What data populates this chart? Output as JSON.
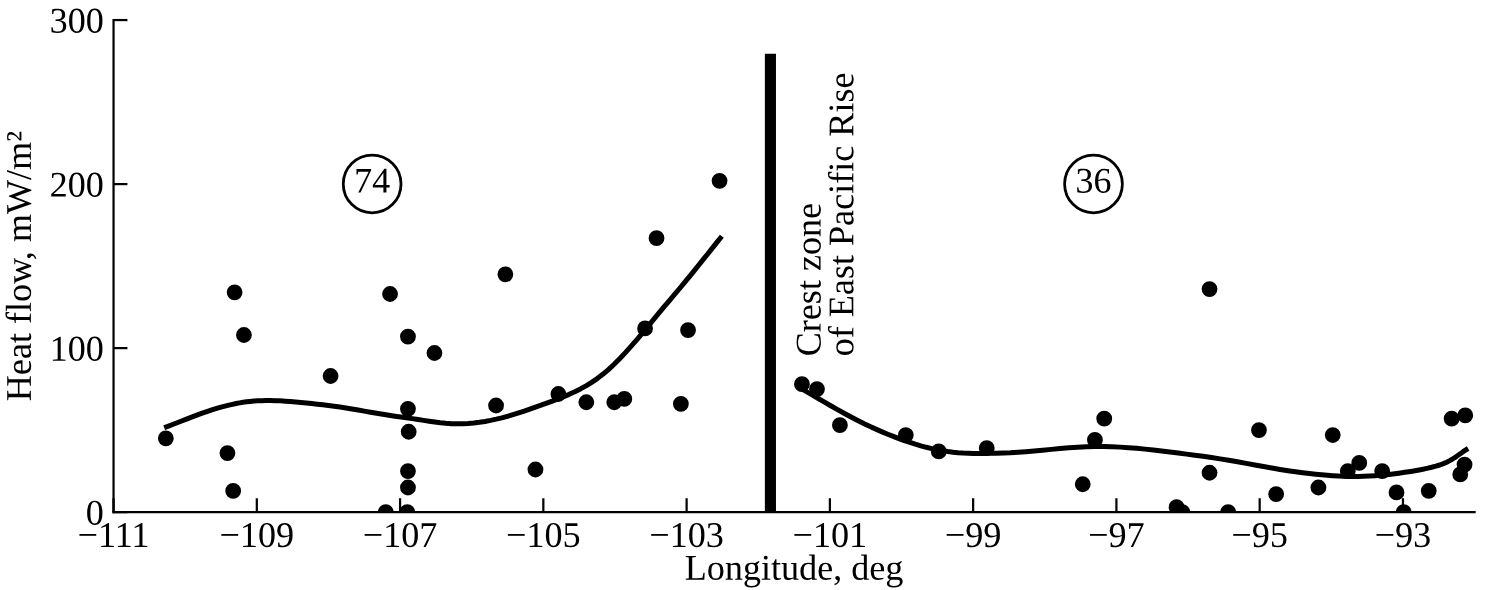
{
  "chart_data": {
    "type": "scatter",
    "xlabel": "Longitude, deg",
    "ylabel": "Heat flow, mW/m²",
    "xlim": [
      -111,
      -92
    ],
    "ylim": [
      0,
      300
    ],
    "xticks": [
      {
        "value": -111,
        "label": "−111"
      },
      {
        "value": -109,
        "label": "−109"
      },
      {
        "value": -107,
        "label": "−107"
      },
      {
        "value": -105,
        "label": "−105"
      },
      {
        "value": -103,
        "label": "−103"
      },
      {
        "value": -101,
        "label": "−101"
      },
      {
        "value": -99,
        "label": "−99"
      },
      {
        "value": -97,
        "label": "−97"
      },
      {
        "value": -95,
        "label": "−95"
      },
      {
        "value": -93,
        "label": "−93"
      }
    ],
    "yticks": [
      0,
      100,
      200,
      300
    ],
    "grid": false,
    "legend": false,
    "marker": "circle",
    "series": [
      {
        "color": "#000000",
        "x": [
          -110.27,
          -109.41,
          -109.33,
          -109.31,
          -109.18,
          -107.97,
          -107.2,
          -107.14,
          -106.9,
          -106.89,
          -106.89,
          -106.88,
          -106.89,
          -106.89,
          -106.52,
          -105.66,
          -105.53,
          -105.11,
          -104.79,
          -104.4,
          -104.01,
          -103.87,
          -103.58,
          -103.42,
          -103.08,
          -102.98,
          -102.54
        ],
        "values": [
          45,
          36,
          13,
          134,
          108,
          83,
          0,
          133,
          0,
          15,
          25,
          49,
          63,
          107,
          97,
          65,
          145,
          26,
          72,
          67,
          67,
          69,
          112,
          167,
          66,
          111,
          202
        ]
      },
      {
        "color": "#000000",
        "x": [
          -101.39,
          -101.18,
          -100.86,
          -99.94,
          -99.48,
          -98.81,
          -97.47,
          -97.3,
          -97.17,
          -96.16,
          -96.08,
          -95.7,
          -95.7,
          -95.44,
          -95.01,
          -94.77,
          -94.18,
          -93.98,
          -93.77,
          -93.61,
          -93.29,
          -93.09,
          -92.99,
          -92.64,
          -92.32,
          -92.13,
          -92.2,
          -92.14
        ],
        "values": [
          78,
          75,
          53,
          47,
          37,
          39,
          17,
          44,
          57,
          3,
          0,
          136,
          24,
          0,
          50,
          11,
          15,
          47,
          25,
          30,
          25,
          12,
          0,
          13,
          57,
          59,
          23,
          29
        ]
      },
      {
        "type": "line",
        "color": "#000000",
        "line_style": "solid",
        "marker": "none",
        "x": [
          -110.26,
          -109.5,
          -108.87,
          -108,
          -106.99,
          -106.05,
          -105.11,
          -104.17,
          -103.24,
          -102.53
        ],
        "values": [
          52,
          64,
          68,
          65,
          58,
          54,
          64,
          84,
          129,
          167
        ]
      },
      {
        "type": "line",
        "color": "#000000",
        "line_style": "solid",
        "marker": "none",
        "x": [
          -101.43,
          -100.43,
          -99.5,
          -98.58,
          -97.18,
          -95.79,
          -94.4,
          -93.47,
          -92.54,
          -92.12
        ],
        "values": [
          76,
          52,
          38,
          36,
          40,
          34,
          24,
          22,
          28,
          38
        ]
      }
    ],
    "ref_lines": [
      {
        "axis": "x",
        "value": -101.83,
        "label": "Crest zone\nof East Pacific Rise",
        "color": "#000000"
      }
    ],
    "annotations": [
      "74",
      "36"
    ]
  }
}
